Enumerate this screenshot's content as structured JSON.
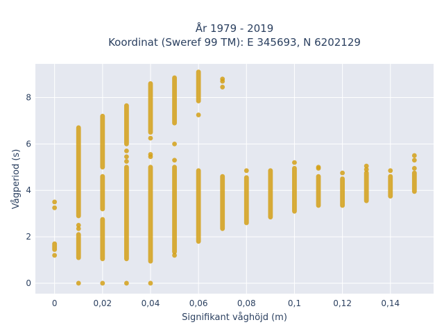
{
  "chart_data": {
    "type": "scatter",
    "title_line1": "År 1979 - 2019",
    "title_line2": "Koordinat (Sweref 99 TM): E 345693, N 6202129",
    "xlabel": "Signifikant våghöjd (m)",
    "ylabel": "Vågperiod (s)",
    "xlim": [
      -0.008,
      0.158
    ],
    "ylim": [
      -0.45,
      9.45
    ],
    "xticks": [
      0,
      0.02,
      0.04,
      0.06,
      0.08,
      0.1,
      0.12,
      0.14
    ],
    "xtick_labels": [
      "0",
      "0,02",
      "0,04",
      "0,06",
      "0,08",
      "0,1",
      "0,12",
      "0,14"
    ],
    "yticks": [
      0,
      2,
      4,
      6,
      8
    ],
    "ytick_labels": [
      "0",
      "2",
      "4",
      "6",
      "8"
    ],
    "grid": true,
    "colors": {
      "point": "#D4A017",
      "plot_bg": "#E5E8F0",
      "grid": "#FFFFFF"
    },
    "columns": [
      {
        "x": 0,
        "segments": [
          [
            1.45,
            1.7
          ]
        ],
        "points": [
          3.5,
          3.25,
          1.2
        ]
      },
      {
        "x": 0.01,
        "segments": [
          [
            1.1,
            2.1
          ],
          [
            2.9,
            6.7
          ]
        ],
        "points": [
          0,
          2.35,
          2.5
        ]
      },
      {
        "x": 0.02,
        "segments": [
          [
            1.05,
            2.75
          ],
          [
            3.2,
            4.6
          ],
          [
            5.0,
            7.2
          ]
        ],
        "points": [
          0
        ]
      },
      {
        "x": 0.03,
        "segments": [
          [
            1.05,
            5.0
          ],
          [
            6.0,
            7.65
          ]
        ],
        "points": [
          0,
          5.25,
          5.45,
          5.7
        ]
      },
      {
        "x": 0.04,
        "segments": [
          [
            0.95,
            5.0
          ],
          [
            6.5,
            8.6
          ]
        ],
        "points": [
          0,
          5.45,
          5.55,
          6.25
        ]
      },
      {
        "x": 0.05,
        "segments": [
          [
            1.35,
            5.0
          ],
          [
            6.9,
            8.85
          ]
        ],
        "points": [
          1.2,
          5.3,
          6.0
        ]
      },
      {
        "x": 0.06,
        "segments": [
          [
            1.8,
            4.85
          ],
          [
            7.85,
            9.1
          ]
        ],
        "points": [
          7.25
        ]
      },
      {
        "x": 0.07,
        "segments": [
          [
            2.35,
            4.6
          ]
        ],
        "points": [
          8.45,
          8.7,
          8.8
        ]
      },
      {
        "x": 0.08,
        "segments": [
          [
            2.6,
            4.55
          ]
        ],
        "points": [
          4.85
        ]
      },
      {
        "x": 0.09,
        "segments": [
          [
            2.85,
            4.85
          ]
        ],
        "points": []
      },
      {
        "x": 0.1,
        "segments": [
          [
            3.1,
            4.95
          ]
        ],
        "points": [
          5.2
        ]
      },
      {
        "x": 0.11,
        "segments": [
          [
            3.35,
            4.6
          ]
        ],
        "points": [
          4.95,
          5.0
        ]
      },
      {
        "x": 0.12,
        "segments": [
          [
            3.35,
            4.5
          ]
        ],
        "points": [
          4.75
        ]
      },
      {
        "x": 0.13,
        "segments": [
          [
            3.55,
            4.75
          ]
        ],
        "points": [
          4.9,
          5.05
        ]
      },
      {
        "x": 0.14,
        "segments": [
          [
            3.75,
            4.6
          ]
        ],
        "points": [
          4.85
        ]
      },
      {
        "x": 0.15,
        "segments": [
          [
            3.95,
            4.75
          ]
        ],
        "points": [
          4.95,
          5.3,
          5.5
        ]
      }
    ]
  }
}
